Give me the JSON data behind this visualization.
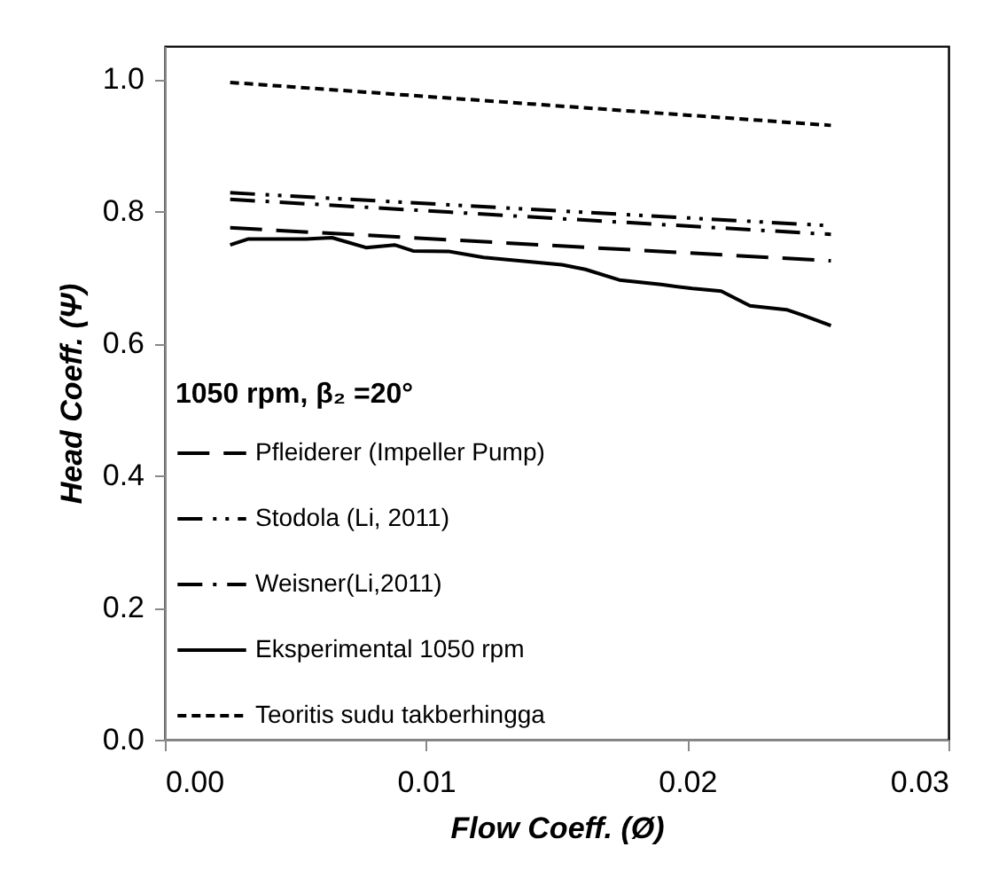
{
  "chart_data": {
    "type": "line",
    "xlabel": "Flow Coeff. (Ø)",
    "ylabel": "Head Coeff. (Ψ)",
    "legend_title": "1050 rpm, β₂ =20°",
    "legend": "bottom left",
    "grid": false,
    "marker": "none",
    "xlim": [
      0,
      0.03
    ],
    "xticks": [
      {
        "value": 0,
        "label": "0.00"
      },
      {
        "value": 0.01,
        "label": "0.01"
      },
      {
        "value": 0.02,
        "label": "0.02"
      },
      {
        "value": 0.03,
        "label": "0.03"
      }
    ],
    "ylim": [
      0,
      1.05
    ],
    "yticks": [
      {
        "value": 0,
        "label": "0.0"
      },
      {
        "value": 0.2,
        "label": "0.2"
      },
      {
        "value": 0.4,
        "label": "0.4"
      },
      {
        "value": 0.6,
        "label": "0.6"
      },
      {
        "value": 0.8,
        "label": "0.8"
      },
      {
        "value": 1,
        "label": "1.0"
      }
    ],
    "series": [
      {
        "name": "Pfleiderer (Impeller Pump)",
        "color": "#000000",
        "line_style": "longdash",
        "x": [
          0.0025,
          0.0255
        ],
        "values": [
          0.775,
          0.725
        ]
      },
      {
        "name": "Stodola (Li, 2011)",
        "color": "#000000",
        "line_style": "dashdotdot",
        "x": [
          0.0025,
          0.0255
        ],
        "values": [
          0.828,
          0.778
        ]
      },
      {
        "name": "Weisner(Li,2011)",
        "color": "#000000",
        "line_style": "dashdot",
        "x": [
          0.0025,
          0.0255
        ],
        "values": [
          0.818,
          0.765
        ]
      },
      {
        "name": "Eksperimental 1050 rpm",
        "color": "#000000",
        "line_style": "solid",
        "x": [
          0.0025,
          0.0032,
          0.0054,
          0.0064,
          0.0077,
          0.0088,
          0.0095,
          0.0109,
          0.0122,
          0.0152,
          0.0161,
          0.0174,
          0.019,
          0.0202,
          0.0213,
          0.0224,
          0.0238,
          0.0244,
          0.0255
        ],
        "values": [
          0.749,
          0.758,
          0.758,
          0.76,
          0.745,
          0.749,
          0.74,
          0.739,
          0.73,
          0.719,
          0.712,
          0.696,
          0.689,
          0.683,
          0.679,
          0.657,
          0.651,
          0.643,
          0.627
        ]
      },
      {
        "name": "Teoritis sudu takberhingga",
        "color": "#000000",
        "line_style": "dashed",
        "x": [
          0.0025,
          0.0255
        ],
        "values": [
          0.995,
          0.93
        ]
      }
    ]
  }
}
